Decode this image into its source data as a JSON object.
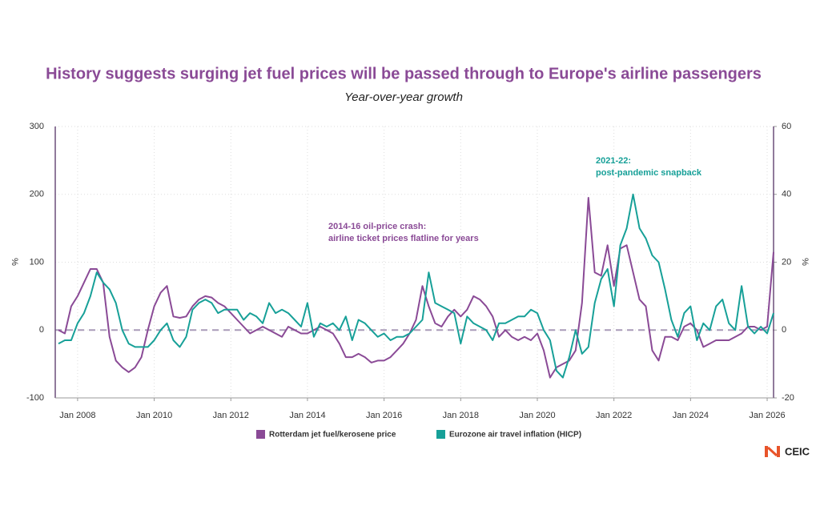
{
  "chart_data": {
    "type": "line",
    "title": "History suggests surging jet fuel prices will be passed through to Europe's airline passengers",
    "subtitle": "Year-over-year growth",
    "ylabel": "%",
    "y2label": "%",
    "x": [
      "2007-07",
      "2007-09",
      "2007-11",
      "2008-01",
      "2008-03",
      "2008-05",
      "2008-07",
      "2008-09",
      "2008-11",
      "2009-01",
      "2009-03",
      "2009-05",
      "2009-07",
      "2009-09",
      "2009-11",
      "2010-01",
      "2010-03",
      "2010-05",
      "2010-07",
      "2010-09",
      "2010-11",
      "2011-01",
      "2011-03",
      "2011-05",
      "2011-07",
      "2011-09",
      "2011-11",
      "2012-01",
      "2012-03",
      "2012-05",
      "2012-07",
      "2012-09",
      "2012-11",
      "2013-01",
      "2013-03",
      "2013-05",
      "2013-07",
      "2013-09",
      "2013-11",
      "2014-01",
      "2014-03",
      "2014-05",
      "2014-07",
      "2014-09",
      "2014-11",
      "2015-01",
      "2015-03",
      "2015-05",
      "2015-07",
      "2015-09",
      "2015-11",
      "2016-01",
      "2016-03",
      "2016-05",
      "2016-07",
      "2016-09",
      "2016-11",
      "2017-01",
      "2017-03",
      "2017-05",
      "2017-07",
      "2017-09",
      "2017-11",
      "2018-01",
      "2018-03",
      "2018-05",
      "2018-07",
      "2018-09",
      "2018-11",
      "2019-01",
      "2019-03",
      "2019-05",
      "2019-07",
      "2019-09",
      "2019-11",
      "2020-01",
      "2020-03",
      "2020-05",
      "2020-07",
      "2020-09",
      "2020-11",
      "2021-01",
      "2021-03",
      "2021-05",
      "2021-07",
      "2021-09",
      "2021-11",
      "2022-01",
      "2022-03",
      "2022-05",
      "2022-07",
      "2022-09",
      "2022-11",
      "2023-01",
      "2023-03",
      "2023-05",
      "2023-07",
      "2023-09",
      "2023-11",
      "2024-01",
      "2024-03",
      "2024-05",
      "2024-07",
      "2024-09",
      "2024-11",
      "2025-01",
      "2025-03",
      "2025-05",
      "2025-07",
      "2025-09",
      "2025-11",
      "2026-01",
      "2026-03"
    ],
    "series": [
      {
        "name": "Rotterdam jet fuel/kerosene price",
        "color": "#8a4a96",
        "axis": "y",
        "values": [
          0,
          -5,
          35,
          50,
          70,
          90,
          90,
          70,
          -10,
          -45,
          -55,
          -62,
          -55,
          -40,
          0,
          35,
          55,
          65,
          20,
          18,
          20,
          35,
          45,
          50,
          48,
          40,
          35,
          25,
          15,
          5,
          -5,
          0,
          5,
          0,
          -5,
          -10,
          5,
          0,
          -5,
          -5,
          0,
          5,
          0,
          -5,
          -20,
          -40,
          -40,
          -35,
          -40,
          -48,
          -45,
          -45,
          -40,
          -30,
          -20,
          -5,
          15,
          65,
          35,
          10,
          5,
          20,
          30,
          20,
          30,
          50,
          45,
          35,
          20,
          -10,
          0,
          -10,
          -15,
          -10,
          -15,
          -5,
          -30,
          -70,
          -55,
          -50,
          -45,
          -30,
          40,
          195,
          85,
          80,
          125,
          65,
          120,
          125,
          85,
          45,
          35,
          -30,
          -45,
          -10,
          -10,
          -15,
          5,
          10,
          0,
          -25,
          -20,
          -15,
          -15,
          -15,
          -10,
          -5,
          5,
          5,
          0,
          5,
          115
        ]
      },
      {
        "name": "Eurozone air travel inflation (HICP)",
        "color": "#17a098",
        "axis": "y2",
        "values": [
          -4,
          -3,
          -3,
          2,
          5,
          10,
          17,
          14,
          12,
          8,
          0,
          -4,
          -5,
          -5,
          -5,
          -3,
          0,
          2,
          -3,
          -5,
          -2,
          6,
          8,
          9,
          8,
          5,
          6,
          6,
          6,
          3,
          5,
          4,
          2,
          8,
          5,
          6,
          5,
          3,
          1,
          8,
          -2,
          2,
          1,
          2,
          0,
          4,
          -3,
          3,
          2,
          0,
          -2,
          -1,
          -3,
          -2,
          -2,
          -1,
          1,
          3,
          17,
          8,
          7,
          6,
          5,
          -4,
          4,
          2,
          1,
          0,
          -3,
          2,
          2,
          3,
          4,
          4,
          6,
          5,
          0,
          -3,
          -12,
          -14,
          -8,
          0,
          -7,
          -5,
          8,
          15,
          18,
          7,
          25,
          30,
          40,
          30,
          27,
          22,
          20,
          12,
          3,
          -2,
          5,
          7,
          -3,
          2,
          0,
          7,
          9,
          2,
          0,
          13,
          1,
          -1,
          1,
          -1,
          5
        ]
      }
    ],
    "xlim": [
      "2007-06",
      "2026-03"
    ],
    "xticks": [
      {
        "value": "2008-01",
        "label": "Jan 2008"
      },
      {
        "value": "2010-01",
        "label": "Jan 2010"
      },
      {
        "value": "2012-01",
        "label": "Jan 2012"
      },
      {
        "value": "2014-01",
        "label": "Jan 2014"
      },
      {
        "value": "2016-01",
        "label": "Jan 2016"
      },
      {
        "value": "2018-01",
        "label": "Jan 2018"
      },
      {
        "value": "2020-01",
        "label": "Jan 2020"
      },
      {
        "value": "2022-01",
        "label": "Jan 2022"
      },
      {
        "value": "2024-01",
        "label": "Jan 2024"
      },
      {
        "value": "2026-01",
        "label": "Jan 2026"
      }
    ],
    "ylim": [
      -100,
      300
    ],
    "yticks": [
      -100,
      0,
      100,
      200,
      300
    ],
    "y2lim": [
      -20,
      60
    ],
    "y2ticks": [
      -20,
      0,
      20,
      40,
      60
    ],
    "grid": true,
    "annotations": [
      {
        "lines": [
          "2014-16 oil-price crash:",
          "airline ticket prices flatline for years"
        ],
        "color": "#8a4a96"
      },
      {
        "lines": [
          "2021-22:",
          "post-pandemic snapback"
        ],
        "color": "#17a098"
      }
    ]
  },
  "logo": "CEIC"
}
